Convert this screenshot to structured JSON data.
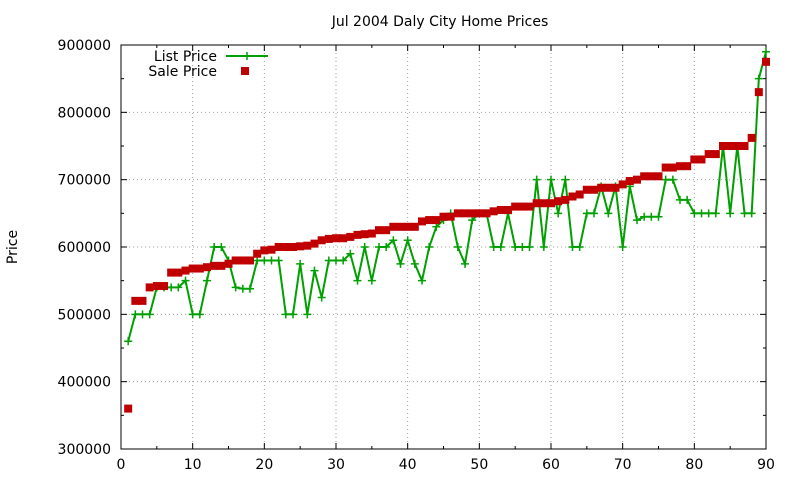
{
  "chart_data": {
    "type": "line",
    "title": "Jul 2004 Daly City Home Prices",
    "xlabel": "",
    "ylabel": "Price",
    "xlim": [
      0,
      90
    ],
    "ylim": [
      300000,
      900000
    ],
    "x_ticks": [
      "0",
      "10",
      "20",
      "30",
      "40",
      "50",
      "60",
      "70",
      "80",
      "90"
    ],
    "y_ticks": [
      "300000",
      "400000",
      "500000",
      "600000",
      "700000",
      "800000",
      "900000"
    ],
    "grid": true,
    "legend_position": "top-left",
    "series": [
      {
        "name": "List Price",
        "style": "lines-with-plus-markers",
        "color": "#00a000",
        "x": [
          1,
          2,
          3,
          4,
          5,
          6,
          7,
          8,
          9,
          10,
          11,
          12,
          13,
          14,
          15,
          16,
          17,
          18,
          19,
          20,
          21,
          22,
          23,
          24,
          25,
          26,
          27,
          28,
          29,
          30,
          31,
          32,
          33,
          34,
          35,
          36,
          37,
          38,
          39,
          40,
          41,
          42,
          43,
          44,
          45,
          46,
          47,
          48,
          49,
          50,
          51,
          52,
          53,
          54,
          55,
          56,
          57,
          58,
          59,
          60,
          61,
          62,
          63,
          64,
          65,
          66,
          67,
          68,
          69,
          70,
          71,
          72,
          73,
          74,
          75,
          76,
          77,
          78,
          79,
          80,
          81,
          82,
          83,
          84,
          85,
          86,
          87,
          88,
          89,
          90
        ],
        "y": [
          460000,
          500000,
          500000,
          500000,
          540000,
          540000,
          540000,
          540000,
          550000,
          500000,
          500000,
          550000,
          600000,
          600000,
          580000,
          540000,
          538000,
          538000,
          580000,
          580000,
          580000,
          580000,
          500000,
          500000,
          575000,
          500000,
          565000,
          525000,
          580000,
          580000,
          580000,
          590000,
          550000,
          600000,
          550000,
          600000,
          600000,
          610000,
          575000,
          610000,
          575000,
          550000,
          600000,
          630000,
          640000,
          650000,
          600000,
          575000,
          640000,
          650000,
          650000,
          600000,
          600000,
          650000,
          600000,
          600000,
          600000,
          700000,
          600000,
          700000,
          650000,
          700000,
          600000,
          600000,
          650000,
          650000,
          690000,
          650000,
          690000,
          600000,
          690000,
          640000,
          645000,
          645000,
          645000,
          700000,
          700000,
          670000,
          670000,
          650000,
          650000,
          650000,
          650000,
          750000,
          650000,
          750000,
          650000,
          650000,
          850000,
          890000
        ]
      },
      {
        "name": "Sale Price",
        "style": "square-points",
        "color": "#c00000",
        "x": [
          1,
          2,
          3,
          4,
          5,
          6,
          7,
          8,
          9,
          10,
          11,
          12,
          13,
          14,
          15,
          16,
          17,
          18,
          19,
          20,
          21,
          22,
          23,
          24,
          25,
          26,
          27,
          28,
          29,
          30,
          31,
          32,
          33,
          34,
          35,
          36,
          37,
          38,
          39,
          40,
          41,
          42,
          43,
          44,
          45,
          46,
          47,
          48,
          49,
          50,
          51,
          52,
          53,
          54,
          55,
          56,
          57,
          58,
          59,
          60,
          61,
          62,
          63,
          64,
          65,
          66,
          67,
          68,
          69,
          70,
          71,
          72,
          73,
          74,
          75,
          76,
          77,
          78,
          79,
          80,
          81,
          82,
          83,
          84,
          85,
          86,
          87,
          88,
          89,
          90
        ],
        "y": [
          360000,
          520000,
          520000,
          540000,
          542000,
          542000,
          562000,
          562000,
          565000,
          568000,
          568000,
          570000,
          572000,
          572000,
          575000,
          580000,
          580000,
          580000,
          590000,
          595000,
          596000,
          600000,
          600000,
          600000,
          601000,
          602000,
          605000,
          610000,
          612000,
          613000,
          613000,
          615000,
          618000,
          619000,
          620000,
          625000,
          625000,
          630000,
          630000,
          630000,
          630000,
          638000,
          640000,
          640000,
          645000,
          645000,
          650000,
          650000,
          650000,
          650000,
          650000,
          653000,
          655000,
          655000,
          660000,
          660000,
          660000,
          665000,
          665000,
          665000,
          668000,
          670000,
          675000,
          678000,
          685000,
          685000,
          688000,
          688000,
          688000,
          693000,
          698000,
          700000,
          705000,
          705000,
          705000,
          718000,
          718000,
          720000,
          720000,
          730000,
          730000,
          738000,
          738000,
          750000,
          750000,
          750000,
          750000,
          762000,
          830000,
          875000
        ]
      }
    ]
  }
}
